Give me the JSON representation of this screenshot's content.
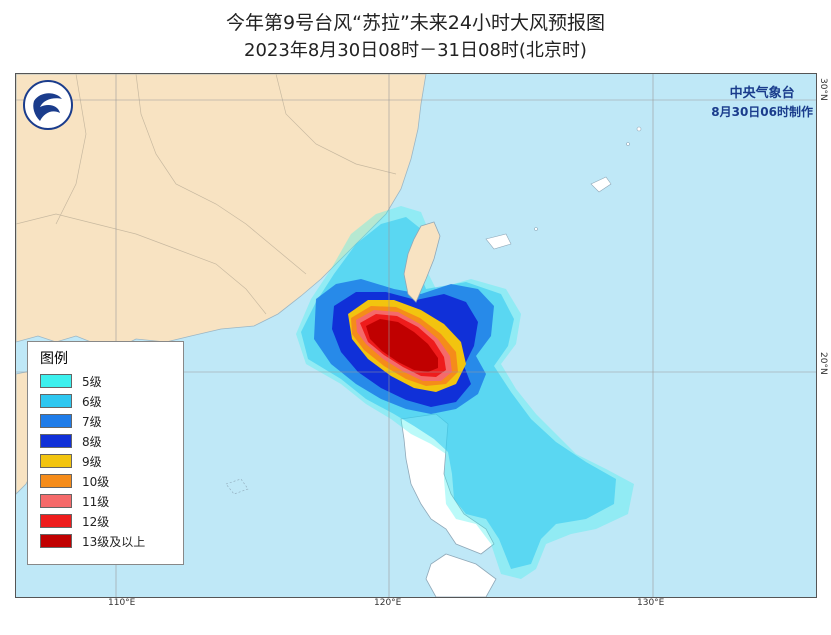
{
  "title": {
    "line1": "今年第9号台风“苏拉”未来24小时大风预报图",
    "line2": "2023年8月30日08时－31日08时(北京时)"
  },
  "agency": {
    "name": "中央气象台",
    "issued": "8月30日06时制作"
  },
  "ticks": {
    "lon": [
      "110°E",
      "120°E",
      "130°E"
    ],
    "lat": [
      "30°N",
      "20°N"
    ]
  },
  "legend": {
    "title": "图例",
    "items": [
      {
        "label": "5级",
        "color": "#3cf0ee"
      },
      {
        "label": "6级",
        "color": "#2ec7f0"
      },
      {
        "label": "7级",
        "color": "#1f7ce8"
      },
      {
        "label": "8级",
        "color": "#1030d8"
      },
      {
        "label": "9级",
        "color": "#f2c40f"
      },
      {
        "label": "10级",
        "color": "#f58c1a"
      },
      {
        "label": "11级",
        "color": "#f56a6a"
      },
      {
        "label": "12级",
        "color": "#ee1c1c"
      },
      {
        "label": "13级及以上",
        "color": "#c00000"
      }
    ]
  },
  "colors": {
    "sea": "#bfe8f7",
    "land": "#f8e3c2",
    "border": "#7fbfd8"
  }
}
